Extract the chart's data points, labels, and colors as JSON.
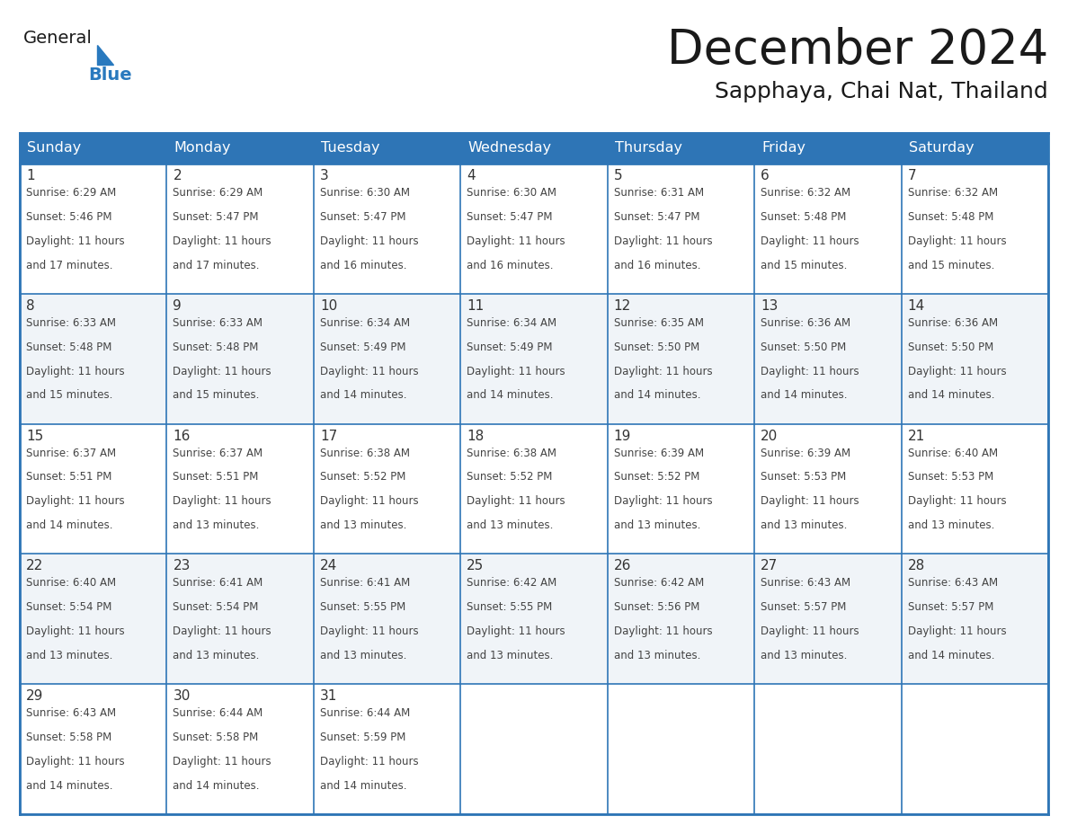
{
  "title": "December 2024",
  "subtitle": "Sapphaya, Chai Nat, Thailand",
  "days_of_week": [
    "Sunday",
    "Monday",
    "Tuesday",
    "Wednesday",
    "Thursday",
    "Friday",
    "Saturday"
  ],
  "header_bg": "#2E75B6",
  "header_text": "#FFFFFF",
  "border_color": "#2E75B6",
  "day_num_color": "#333333",
  "text_color": "#444444",
  "title_color": "#1a1a1a",
  "subtitle_color": "#1a1a1a",
  "logo_general_color": "#1a1a1a",
  "logo_blue_color": "#2979BE",
  "calendar_data": [
    [
      {
        "day": "1",
        "sunrise": "6:29 AM",
        "sunset": "5:46 PM",
        "daylight_h": "11 hours",
        "daylight_m": "and 17 minutes."
      },
      {
        "day": "2",
        "sunrise": "6:29 AM",
        "sunset": "5:47 PM",
        "daylight_h": "11 hours",
        "daylight_m": "and 17 minutes."
      },
      {
        "day": "3",
        "sunrise": "6:30 AM",
        "sunset": "5:47 PM",
        "daylight_h": "11 hours",
        "daylight_m": "and 16 minutes."
      },
      {
        "day": "4",
        "sunrise": "6:30 AM",
        "sunset": "5:47 PM",
        "daylight_h": "11 hours",
        "daylight_m": "and 16 minutes."
      },
      {
        "day": "5",
        "sunrise": "6:31 AM",
        "sunset": "5:47 PM",
        "daylight_h": "11 hours",
        "daylight_m": "and 16 minutes."
      },
      {
        "day": "6",
        "sunrise": "6:32 AM",
        "sunset": "5:48 PM",
        "daylight_h": "11 hours",
        "daylight_m": "and 15 minutes."
      },
      {
        "day": "7",
        "sunrise": "6:32 AM",
        "sunset": "5:48 PM",
        "daylight_h": "11 hours",
        "daylight_m": "and 15 minutes."
      }
    ],
    [
      {
        "day": "8",
        "sunrise": "6:33 AM",
        "sunset": "5:48 PM",
        "daylight_h": "11 hours",
        "daylight_m": "and 15 minutes."
      },
      {
        "day": "9",
        "sunrise": "6:33 AM",
        "sunset": "5:48 PM",
        "daylight_h": "11 hours",
        "daylight_m": "and 15 minutes."
      },
      {
        "day": "10",
        "sunrise": "6:34 AM",
        "sunset": "5:49 PM",
        "daylight_h": "11 hours",
        "daylight_m": "and 14 minutes."
      },
      {
        "day": "11",
        "sunrise": "6:34 AM",
        "sunset": "5:49 PM",
        "daylight_h": "11 hours",
        "daylight_m": "and 14 minutes."
      },
      {
        "day": "12",
        "sunrise": "6:35 AM",
        "sunset": "5:50 PM",
        "daylight_h": "11 hours",
        "daylight_m": "and 14 minutes."
      },
      {
        "day": "13",
        "sunrise": "6:36 AM",
        "sunset": "5:50 PM",
        "daylight_h": "11 hours",
        "daylight_m": "and 14 minutes."
      },
      {
        "day": "14",
        "sunrise": "6:36 AM",
        "sunset": "5:50 PM",
        "daylight_h": "11 hours",
        "daylight_m": "and 14 minutes."
      }
    ],
    [
      {
        "day": "15",
        "sunrise": "6:37 AM",
        "sunset": "5:51 PM",
        "daylight_h": "11 hours",
        "daylight_m": "and 14 minutes."
      },
      {
        "day": "16",
        "sunrise": "6:37 AM",
        "sunset": "5:51 PM",
        "daylight_h": "11 hours",
        "daylight_m": "and 13 minutes."
      },
      {
        "day": "17",
        "sunrise": "6:38 AM",
        "sunset": "5:52 PM",
        "daylight_h": "11 hours",
        "daylight_m": "and 13 minutes."
      },
      {
        "day": "18",
        "sunrise": "6:38 AM",
        "sunset": "5:52 PM",
        "daylight_h": "11 hours",
        "daylight_m": "and 13 minutes."
      },
      {
        "day": "19",
        "sunrise": "6:39 AM",
        "sunset": "5:52 PM",
        "daylight_h": "11 hours",
        "daylight_m": "and 13 minutes."
      },
      {
        "day": "20",
        "sunrise": "6:39 AM",
        "sunset": "5:53 PM",
        "daylight_h": "11 hours",
        "daylight_m": "and 13 minutes."
      },
      {
        "day": "21",
        "sunrise": "6:40 AM",
        "sunset": "5:53 PM",
        "daylight_h": "11 hours",
        "daylight_m": "and 13 minutes."
      }
    ],
    [
      {
        "day": "22",
        "sunrise": "6:40 AM",
        "sunset": "5:54 PM",
        "daylight_h": "11 hours",
        "daylight_m": "and 13 minutes."
      },
      {
        "day": "23",
        "sunrise": "6:41 AM",
        "sunset": "5:54 PM",
        "daylight_h": "11 hours",
        "daylight_m": "and 13 minutes."
      },
      {
        "day": "24",
        "sunrise": "6:41 AM",
        "sunset": "5:55 PM",
        "daylight_h": "11 hours",
        "daylight_m": "and 13 minutes."
      },
      {
        "day": "25",
        "sunrise": "6:42 AM",
        "sunset": "5:55 PM",
        "daylight_h": "11 hours",
        "daylight_m": "and 13 minutes."
      },
      {
        "day": "26",
        "sunrise": "6:42 AM",
        "sunset": "5:56 PM",
        "daylight_h": "11 hours",
        "daylight_m": "and 13 minutes."
      },
      {
        "day": "27",
        "sunrise": "6:43 AM",
        "sunset": "5:57 PM",
        "daylight_h": "11 hours",
        "daylight_m": "and 13 minutes."
      },
      {
        "day": "28",
        "sunrise": "6:43 AM",
        "sunset": "5:57 PM",
        "daylight_h": "11 hours",
        "daylight_m": "and 14 minutes."
      }
    ],
    [
      {
        "day": "29",
        "sunrise": "6:43 AM",
        "sunset": "5:58 PM",
        "daylight_h": "11 hours",
        "daylight_m": "and 14 minutes."
      },
      {
        "day": "30",
        "sunrise": "6:44 AM",
        "sunset": "5:58 PM",
        "daylight_h": "11 hours",
        "daylight_m": "and 14 minutes."
      },
      {
        "day": "31",
        "sunrise": "6:44 AM",
        "sunset": "5:59 PM",
        "daylight_h": "11 hours",
        "daylight_m": "and 14 minutes."
      },
      null,
      null,
      null,
      null
    ]
  ]
}
